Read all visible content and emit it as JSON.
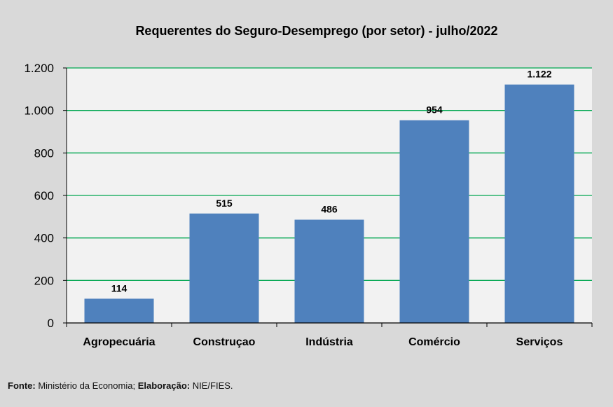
{
  "chart_data": {
    "type": "bar",
    "title": "Requerentes do Seguro-Desemprego (por setor) - julho/2022",
    "categories": [
      "Agropecuária",
      "Construçao",
      "Indústria",
      "Comércio",
      "Serviços"
    ],
    "values": [
      114,
      515,
      486,
      954,
      1122
    ],
    "data_labels": [
      "114",
      "515",
      "486",
      "954",
      "1.122"
    ],
    "xlabel": "",
    "ylabel": "",
    "ylim": [
      0,
      1200
    ],
    "yticks": [
      0,
      200,
      400,
      600,
      800,
      1000,
      1200
    ],
    "ytick_labels": [
      "0",
      "200",
      "400",
      "600",
      "800",
      "1.000",
      "1.200"
    ],
    "grid": true,
    "legend": "none",
    "colors": {
      "bar": "#4f81bd",
      "grid": "#00a650",
      "plot_bg": "#f2f2f2",
      "page_bg": "#d9d9d9"
    }
  },
  "footer": {
    "source_label": "Fonte:",
    "source_text": "Ministério da Economia;",
    "credit_label": "Elaboração:",
    "credit_text": "NIE/FIES."
  }
}
